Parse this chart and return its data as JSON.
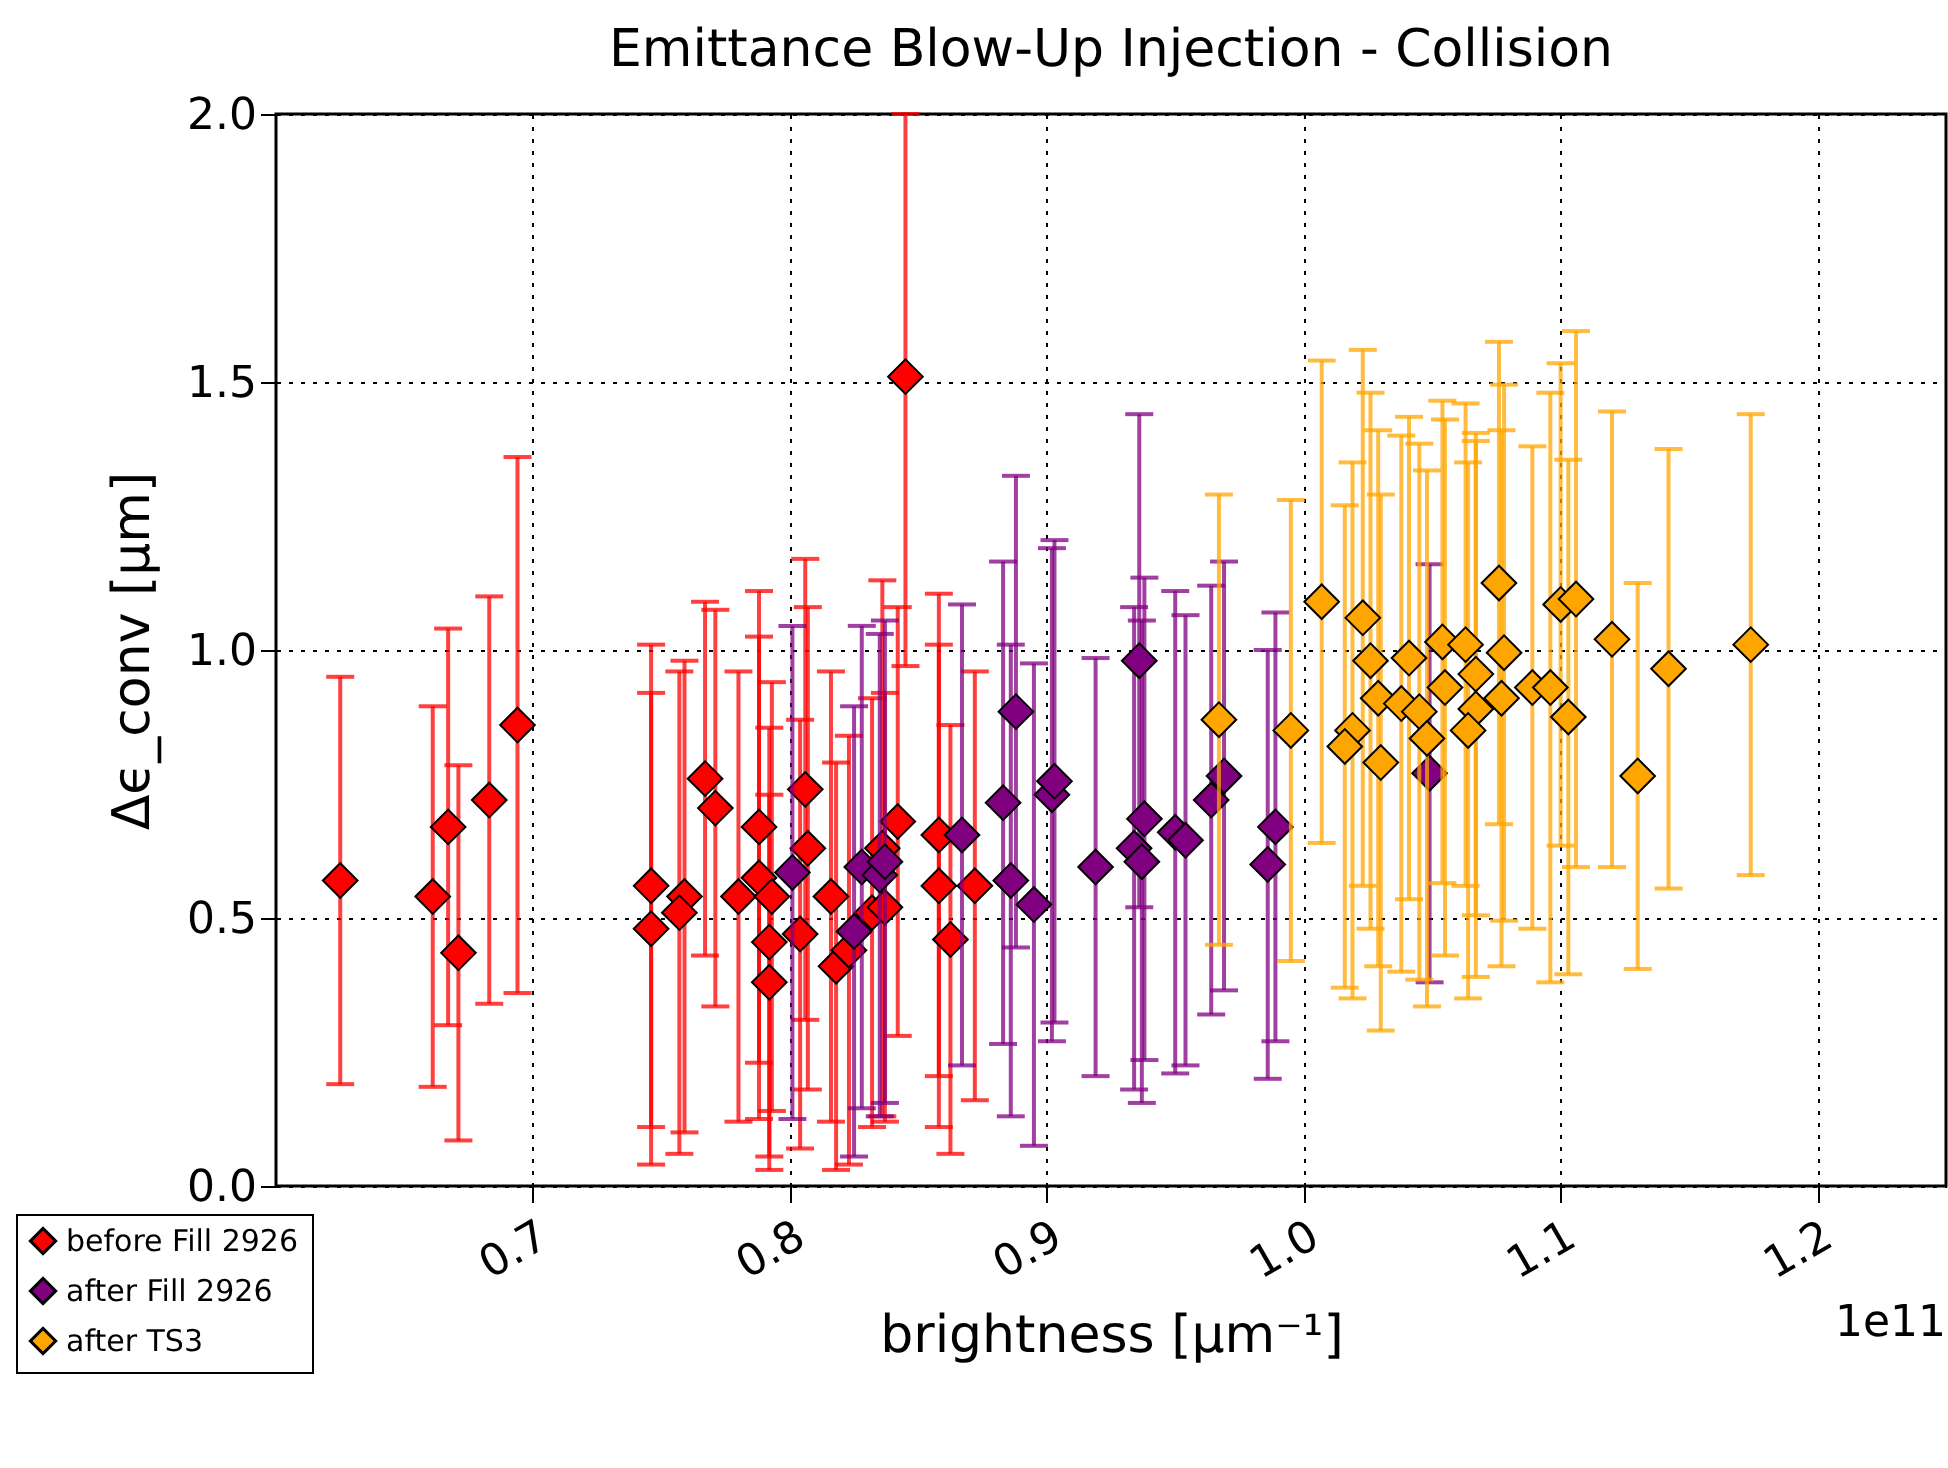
{
  "chart_data": {
    "type": "scatter",
    "title": "Emittance Blow-Up Injection - Collision",
    "xlabel": "brightness [μm⁻¹]",
    "ylabel": "Δϵ_conv [μm]",
    "xlim": [
      0.6,
      1.25
    ],
    "xticks": [
      0.7,
      0.8,
      0.9,
      {
        "value": 1.0,
        "label": "1.0"
      },
      1.1,
      1.2
    ],
    "ylim": [
      0,
      2.0
    ],
    "yticks": [
      {
        "value": 0,
        "label": "0.0"
      },
      0.5,
      {
        "value": 1,
        "label": "1.0"
      },
      1.5,
      {
        "value": 2,
        "label": "2.0"
      }
    ],
    "grid": true,
    "legend": "bottom left",
    "marker": "diamond",
    "annotations": [
      "1e11"
    ],
    "series": [
      {
        "name": "before Fill 2926",
        "color": "#ff0000",
        "x": [
          0.625,
          0.661,
          0.667,
          0.671,
          0.683,
          0.694,
          0.746,
          0.746,
          0.759,
          0.757,
          0.767,
          0.771,
          0.78,
          0.788,
          0.788,
          0.793,
          0.792,
          0.792,
          0.806,
          0.807,
          0.804,
          0.816,
          0.818,
          0.823,
          0.832,
          0.837,
          0.836,
          0.842,
          0.845,
          0.858,
          0.858,
          0.8625,
          0.872
        ],
        "values": [
          0.57,
          0.54,
          0.67,
          0.435,
          0.72,
          0.86,
          0.56,
          0.48,
          0.54,
          0.51,
          0.76,
          0.705,
          0.54,
          0.67,
          0.575,
          0.54,
          0.455,
          0.38,
          0.74,
          0.63,
          0.47,
          0.54,
          0.41,
          0.44,
          0.51,
          0.52,
          0.63,
          0.68,
          1.51,
          0.56,
          0.655,
          0.46,
          0.56
        ],
        "errors": [
          0.38,
          0.355,
          0.37,
          0.35,
          0.38,
          0.5,
          0.45,
          0.44,
          0.44,
          0.45,
          0.33,
          0.37,
          0.42,
          0.44,
          0.45,
          0.4,
          0.4,
          0.35,
          0.43,
          0.45,
          0.4,
          0.42,
          0.38,
          0.4,
          0.4,
          0.4,
          0.5,
          0.4,
          [
            0.97,
            2.0
          ],
          0.45,
          0.45,
          0.4,
          0.4
        ]
      },
      {
        "name": "after Fill 2926",
        "color": "#800080",
        "x": [
          0.801,
          0.825,
          0.828,
          0.835,
          0.837,
          0.867,
          0.888,
          0.883,
          0.886,
          0.895,
          0.902,
          0.903,
          0.919,
          0.936,
          0.938,
          0.934,
          0.937,
          0.95,
          0.954,
          0.964,
          0.969,
          0.989,
          0.986,
          1.049
        ],
        "values": [
          0.585,
          0.475,
          0.595,
          0.58,
          0.605,
          0.655,
          0.885,
          0.715,
          0.57,
          0.525,
          0.73,
          0.755,
          0.595,
          0.98,
          0.685,
          0.63,
          0.605,
          0.66,
          0.645,
          0.72,
          0.765,
          0.67,
          0.6,
          0.77
        ],
        "errors": [
          0.46,
          0.42,
          0.45,
          0.45,
          0.45,
          0.43,
          0.44,
          0.45,
          0.44,
          0.45,
          0.46,
          0.45,
          0.39,
          0.46,
          0.45,
          0.45,
          0.45,
          0.45,
          0.42,
          0.4,
          0.4,
          0.4,
          0.4,
          0.39
        ]
      },
      {
        "name": "after TS3",
        "color": "#ffa500",
        "x": [
          0.967,
          0.995,
          1.007,
          1.023,
          1.026,
          1.019,
          1.016,
          1.03,
          1.029,
          1.038,
          1.041,
          1.045,
          1.048,
          1.054,
          1.055,
          1.063,
          1.067,
          1.067,
          1.064,
          1.076,
          1.078,
          1.077,
          1.089,
          1.1,
          1.106,
          1.096,
          1.103,
          1.12,
          1.13,
          1.142,
          1.174
        ],
        "values": [
          0.87,
          0.85,
          1.09,
          1.06,
          0.98,
          0.85,
          0.82,
          0.79,
          0.91,
          0.9,
          0.985,
          0.885,
          0.835,
          1.015,
          0.93,
          1.01,
          0.955,
          0.89,
          0.85,
          1.125,
          0.995,
          0.91,
          0.93,
          1.085,
          1.095,
          0.93,
          0.875,
          1.02,
          0.765,
          0.965,
          1.01
        ],
        "errors": [
          0.42,
          0.43,
          0.45,
          0.5,
          0.5,
          0.5,
          0.45,
          0.5,
          0.5,
          0.5,
          0.45,
          0.5,
          0.5,
          0.45,
          0.5,
          0.45,
          0.45,
          0.5,
          0.5,
          0.45,
          0.5,
          0.5,
          0.45,
          0.45,
          0.5,
          0.55,
          0.48,
          0.425,
          0.36,
          0.41,
          0.43
        ]
      }
    ]
  }
}
